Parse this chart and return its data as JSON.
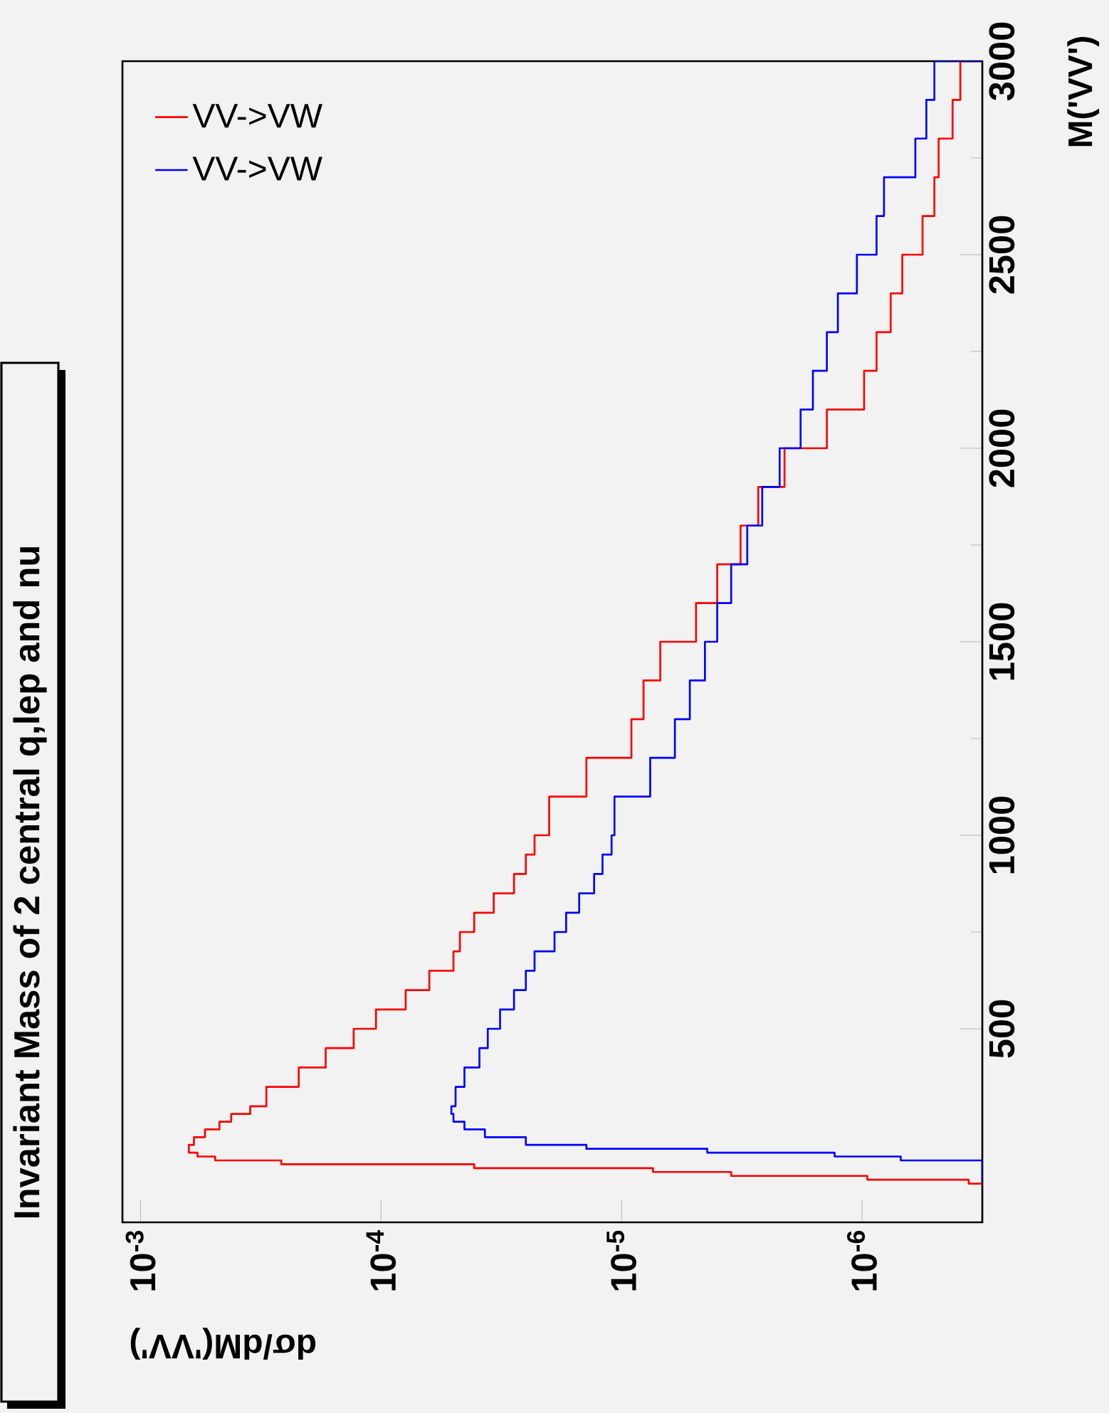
{
  "chart_data": {
    "type": "histogram",
    "orientation": "horizontal",
    "title": "Invariant Mass of 2 central q,lep and nu",
    "xlabel": "dσ/dM('VV')",
    "ylabel": "M('VV')",
    "log": "x",
    "legend": "top left",
    "xlim": [
      0.00119,
      3.16e-07
    ],
    "ylim": [
      0,
      3000
    ],
    "yticks": [
      500,
      1000,
      1500,
      2000,
      2500,
      3000
    ],
    "xticks": [
      {
        "value": 0.001,
        "label": "10$^{-3}$"
      },
      {
        "value": 0.0001,
        "label": "10$^{-4}$"
      },
      {
        "value": 1e-05,
        "label": "10$^{-5}$"
      },
      {
        "value": 1e-06,
        "label": "10$^{-6}$"
      }
    ],
    "bins": [
      100,
      110,
      120,
      130,
      140,
      150,
      160,
      170,
      180,
      190,
      200,
      220,
      240,
      260,
      280,
      300,
      350,
      400,
      450,
      500,
      550,
      600,
      650,
      700,
      750,
      800,
      850,
      900,
      950,
      1000,
      1100,
      1200,
      1300,
      1400,
      1500,
      1600,
      1700,
      1800,
      1900,
      2000,
      2100,
      2200,
      2300,
      2400,
      2500,
      2600,
      2700,
      2800,
      2900,
      3000
    ],
    "series": [
      {
        "name": "VV->VW",
        "color": "#ff0000",
        "values": [
          3.6e-07,
          9.5e-07,
          3.5e-06,
          7.4e-06,
          4.1e-05,
          0.00026,
          0.00049,
          0.00058,
          0.00063,
          0.00063,
          0.0006,
          0.00054,
          0.00047,
          0.00042,
          0.00035,
          0.0003,
          0.00022,
          0.00017,
          0.00013,
          0.000105,
          7.9e-05,
          6.3e-05,
          5e-05,
          4.7e-05,
          4.1e-05,
          3.4e-05,
          2.8e-05,
          2.5e-05,
          2.3e-05,
          2e-05,
          1.4e-05,
          9.1e-06,
          8.1e-06,
          6.9e-06,
          4.9e-06,
          4e-06,
          3.2e-06,
          2.7e-06,
          2.1e-06,
          1.4e-06,
          9.8e-07,
          8.7e-07,
          7.6e-07,
          6.8e-07,
          5.6e-07,
          5e-07,
          4.8e-07,
          4.2e-07,
          3.9e-07
        ]
      },
      {
        "name": "VV->VW",
        "color": "#0000ff",
        "values": [
          null,
          null,
          null,
          null,
          null,
          null,
          6.9e-07,
          1.3e-06,
          4.4e-06,
          1.4e-05,
          2.5e-05,
          3.7e-05,
          4.5e-05,
          5e-05,
          5.1e-05,
          4.9e-05,
          4.5e-05,
          3.9e-05,
          3.6e-05,
          3.2e-05,
          2.8e-05,
          2.5e-05,
          2.3e-05,
          1.9e-05,
          1.7e-05,
          1.5e-05,
          1.3e-05,
          1.2e-05,
          1.1e-05,
          1.07e-05,
          7.6e-06,
          6e-06,
          5.2e-06,
          4.5e-06,
          4e-06,
          3.5e-06,
          3e-06,
          2.6e-06,
          2.2e-06,
          1.8e-06,
          1.6e-06,
          1.4e-06,
          1.26e-06,
          1.05e-06,
          8.7e-07,
          8.1e-07,
          6e-07,
          5.4e-07,
          5e-07
        ]
      }
    ]
  }
}
